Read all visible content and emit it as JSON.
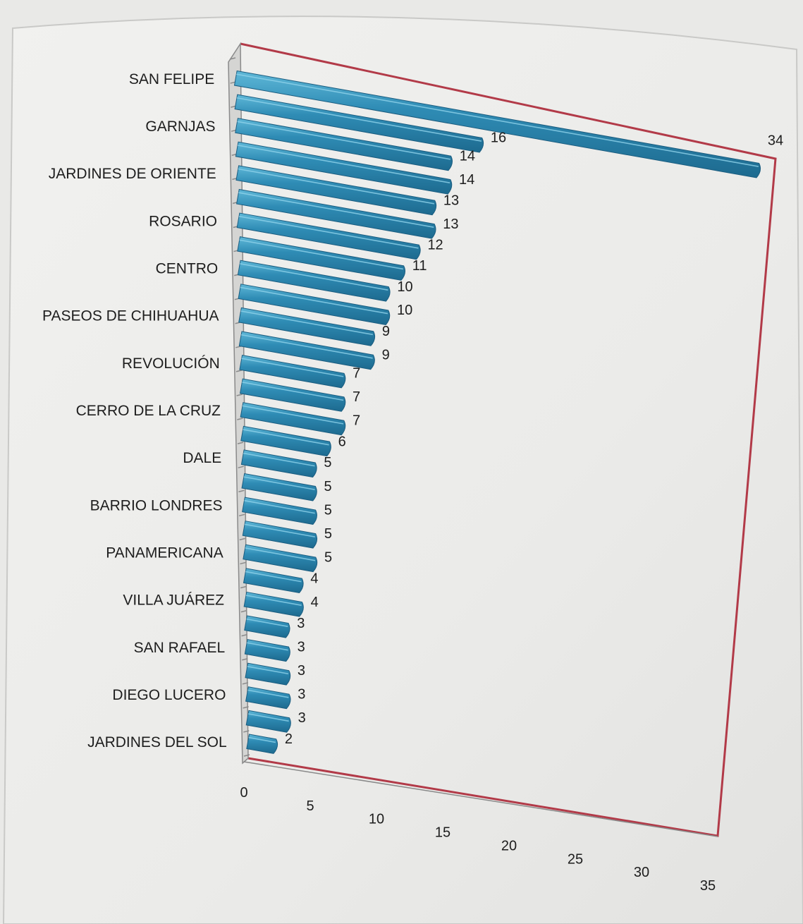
{
  "chart_data": {
    "type": "bar",
    "orientation": "horizontal",
    "style": "3d-perspective",
    "categories": [
      "SAN FELIPE",
      "",
      "GARNJAS",
      "",
      "JARDINES DE ORIENTE",
      "",
      "ROSARIO",
      "",
      "CENTRO",
      "",
      "PASEOS DE CHIHUAHUA",
      "",
      "REVOLUCIÓN",
      "",
      "CERRO DE LA CRUZ",
      "",
      "DALE",
      "",
      "BARRIO LONDRES",
      "",
      "PANAMERICANA",
      "",
      "VILLA JUÁREZ",
      "",
      "SAN RAFAEL",
      "",
      "DIEGO LUCERO",
      "",
      "JARDINES DEL SOL"
    ],
    "values": [
      34,
      16,
      14,
      14,
      13,
      13,
      12,
      11,
      10,
      10,
      9,
      9,
      7,
      7,
      7,
      6,
      5,
      5,
      5,
      5,
      5,
      4,
      4,
      3,
      3,
      3,
      3,
      3,
      2
    ],
    "title": "",
    "xlabel": "",
    "ylabel": "",
    "xlim": [
      0,
      35
    ],
    "xticks": [
      0,
      5,
      10,
      15,
      20,
      25,
      30,
      35
    ],
    "grid": false,
    "legend": "none",
    "colors": {
      "bar": "#2f8cb5",
      "bar_highlight": "#55b2d4",
      "bar_shadow": "#1c5f82",
      "frame": "#b23a48",
      "axis": "#8a8a8a",
      "text": "#1d1d1d"
    }
  }
}
